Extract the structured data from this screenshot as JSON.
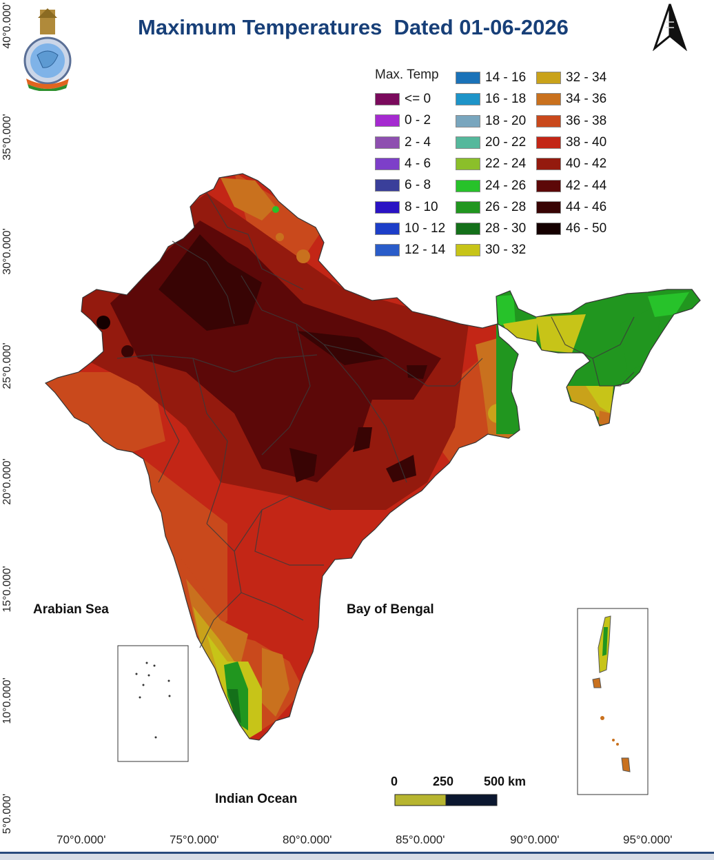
{
  "title": "Maximum Temperatures  Dated 01-06-2026",
  "legend": {
    "title": "Max. Temp",
    "items": [
      {
        "label": "<= 0",
        "color": "#7a0a5c"
      },
      {
        "label": "0 - 2",
        "color": "#a52ad0"
      },
      {
        "label": "2 - 4",
        "color": "#8e4fb0"
      },
      {
        "label": "4 - 6",
        "color": "#7d3fc9"
      },
      {
        "label": "6 - 8",
        "color": "#3a3f9a"
      },
      {
        "label": "8 - 10",
        "color": "#2a13c4"
      },
      {
        "label": "10 - 12",
        "color": "#1d3ec8"
      },
      {
        "label": "12 - 14",
        "color": "#2a5cc9"
      },
      {
        "label": "14 - 16",
        "color": "#1a72b8"
      },
      {
        "label": "16 - 18",
        "color": "#1e94c8"
      },
      {
        "label": "18 - 20",
        "color": "#79a6be"
      },
      {
        "label": "20 - 22",
        "color": "#55b89c"
      },
      {
        "label": "22 - 24",
        "color": "#8bbf2a"
      },
      {
        "label": "24 - 26",
        "color": "#27c22a"
      },
      {
        "label": "26 - 28",
        "color": "#21961f"
      },
      {
        "label": "28 - 30",
        "color": "#14701a"
      },
      {
        "label": "30 - 32",
        "color": "#c7c418"
      },
      {
        "label": "32 - 34",
        "color": "#c9a21a"
      },
      {
        "label": "34 - 36",
        "color": "#c9711e"
      },
      {
        "label": "36 - 38",
        "color": "#c9491c"
      },
      {
        "label": "38 - 40",
        "color": "#c32616"
      },
      {
        "label": "40 - 42",
        "color": "#941a0e"
      },
      {
        "label": "42 - 44",
        "color": "#5c0808"
      },
      {
        "label": "44 - 46",
        "color": "#380404"
      },
      {
        "label": "46 - 50",
        "color": "#150000"
      }
    ]
  },
  "latitude_labels": [
    "40°0.000'",
    "35°0.000'",
    "30°0.000'",
    "25°0.000'",
    "20°0.000'",
    "15°0.000'",
    "10°0.000'",
    "5°0.000'"
  ],
  "longitude_labels": [
    "70°0.000'",
    "75°0.000'",
    "80°0.000'",
    "85°0.000'",
    "90°0.000'",
    "95°0.000'"
  ],
  "seas": {
    "arabian": "Arabian Sea",
    "bengal": "Bay of Bengal",
    "indian": "Indian Ocean"
  },
  "scale_bar": {
    "zero": "0",
    "mid": "250",
    "end": "500 km"
  },
  "icons": {
    "logo": "imd-emblem-logo",
    "north": "north-arrow-icon"
  }
}
